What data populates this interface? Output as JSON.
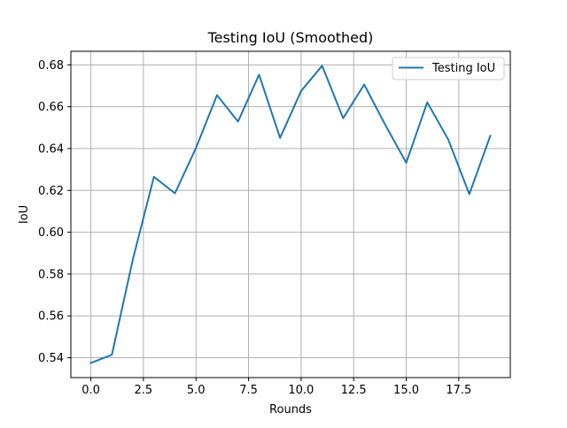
{
  "chart_data": {
    "type": "line",
    "title": "Testing IoU (Smoothed)",
    "xlabel": "Rounds",
    "ylabel": "IoU",
    "xlim": [
      -0.95,
      19.95
    ],
    "ylim": [
      0.5305,
      0.6865
    ],
    "grid": true,
    "legend_position": "top-right",
    "x_ticks": [
      0,
      2.5,
      5,
      7.5,
      10,
      12.5,
      15,
      17.5
    ],
    "x_tick_labels": [
      "0.0",
      "2.5",
      "5.0",
      "7.5",
      "10.0",
      "12.5",
      "15.0",
      "17.5"
    ],
    "y_ticks": [
      0.54,
      0.56,
      0.58,
      0.6,
      0.62,
      0.64,
      0.66,
      0.68
    ],
    "y_tick_labels": [
      "0.54",
      "0.56",
      "0.58",
      "0.60",
      "0.62",
      "0.64",
      "0.66",
      "0.68"
    ],
    "x": [
      0,
      1,
      2,
      3,
      4,
      5,
      6,
      7,
      8,
      9,
      10,
      11,
      12,
      13,
      14,
      15,
      16,
      17,
      18,
      19
    ],
    "series": [
      {
        "name": "Testing IoU",
        "color": "#1f77b4",
        "values": [
          0.5375,
          0.5414,
          0.5871,
          0.6265,
          0.6186,
          0.6403,
          0.6655,
          0.6529,
          0.6753,
          0.6451,
          0.6675,
          0.6796,
          0.6545,
          0.6706,
          0.6514,
          0.6332,
          0.6621,
          0.6443,
          0.6182,
          0.6461
        ]
      }
    ]
  }
}
